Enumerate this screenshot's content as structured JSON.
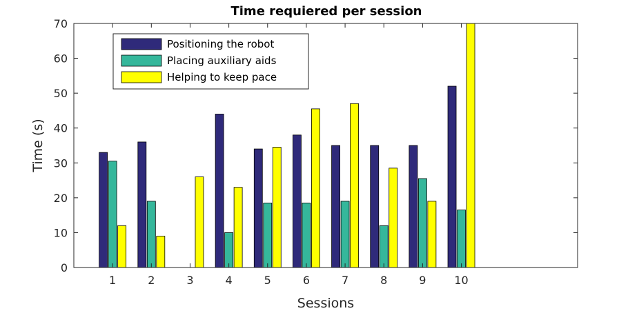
{
  "chart_data": {
    "type": "bar",
    "title": "Time requiered per session",
    "xlabel": "Sessions",
    "ylabel": "Time (s)",
    "categories": [
      "1",
      "2",
      "3",
      "4",
      "5",
      "6",
      "7",
      "8",
      "9",
      "10"
    ],
    "ylim": [
      0,
      70
    ],
    "yticks": [
      0,
      10,
      20,
      30,
      40,
      50,
      60,
      70
    ],
    "xlim": [
      0,
      13
    ],
    "grid": false,
    "legend_position": "top-left",
    "series": [
      {
        "name": "Positioning the robot",
        "color": "#2f2a7a",
        "values": [
          33,
          36,
          0,
          44,
          34,
          38,
          35,
          35,
          35,
          52
        ]
      },
      {
        "name": "Placing auxiliary aids",
        "color": "#35b79b",
        "values": [
          30.5,
          19,
          0,
          10,
          18.5,
          18.5,
          19,
          12,
          25.5,
          16.5
        ]
      },
      {
        "name": "Helping to keep pace",
        "color": "#ffff00",
        "values": [
          12,
          9,
          26,
          23,
          34.5,
          45.5,
          47,
          28.5,
          19,
          70
        ]
      }
    ]
  }
}
